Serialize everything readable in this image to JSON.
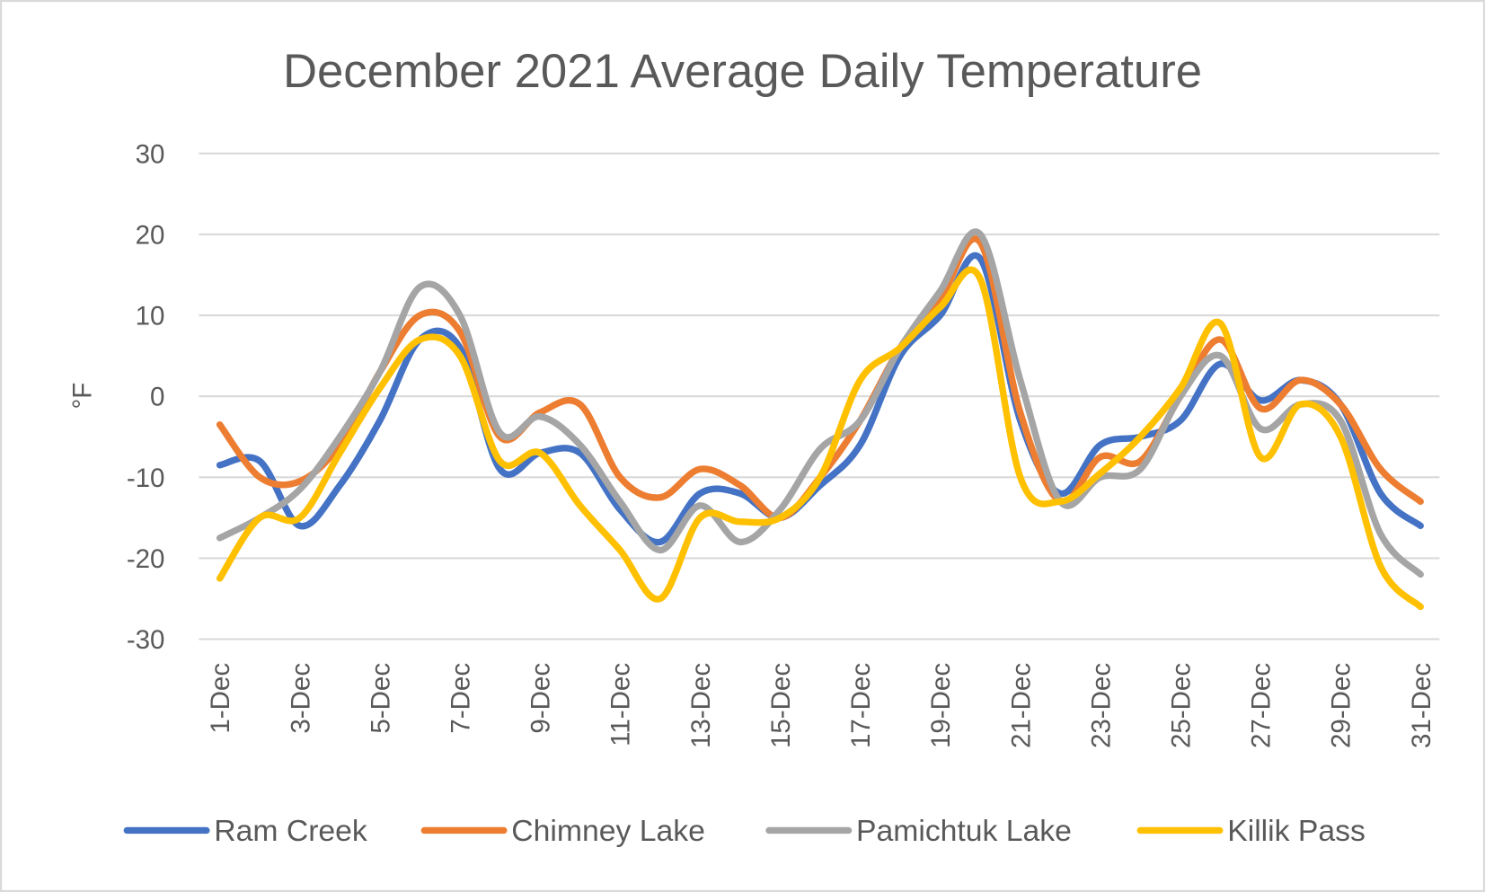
{
  "chart_data": {
    "type": "line",
    "title": "December 2021 Average Daily Temperature",
    "xlabel": "",
    "ylabel": "°F",
    "ylim": [
      -30,
      30
    ],
    "yticks": [
      30,
      20,
      10,
      0,
      -10,
      -20,
      -30
    ],
    "grid": true,
    "smoothed": true,
    "legend": "bottom",
    "categories": [
      "1-Dec",
      "2-Dec",
      "3-Dec",
      "4-Dec",
      "5-Dec",
      "6-Dec",
      "7-Dec",
      "8-Dec",
      "9-Dec",
      "10-Dec",
      "11-Dec",
      "12-Dec",
      "13-Dec",
      "14-Dec",
      "15-Dec",
      "16-Dec",
      "17-Dec",
      "18-Dec",
      "19-Dec",
      "20-Dec",
      "21-Dec",
      "22-Dec",
      "23-Dec",
      "24-Dec",
      "25-Dec",
      "26-Dec",
      "27-Dec",
      "28-Dec",
      "29-Dec",
      "30-Dec",
      "31-Dec"
    ],
    "tick_labels": [
      "1-Dec",
      "3-Dec",
      "5-Dec",
      "7-Dec",
      "9-Dec",
      "11-Dec",
      "13-Dec",
      "15-Dec",
      "17-Dec",
      "19-Dec",
      "21-Dec",
      "23-Dec",
      "25-Dec",
      "27-Dec",
      "29-Dec",
      "31-Dec"
    ],
    "series": [
      {
        "name": "Ram Creek",
        "color": "#4472C4",
        "values": [
          -8.5,
          -8,
          -16,
          -11,
          -3,
          7,
          6,
          -9,
          -7,
          -7,
          -14,
          -18,
          -12,
          -12,
          -15,
          -11,
          -6,
          5,
          10,
          17,
          -3,
          -12,
          -6,
          -5,
          -3,
          4,
          -0.5,
          2,
          -1,
          -12,
          -16
        ]
      },
      {
        "name": "Chimney Lake",
        "color": "#ED7D31",
        "values": [
          -3.5,
          -10,
          -10.5,
          -6,
          3,
          10,
          8,
          -5,
          -2,
          -1,
          -10,
          -12.5,
          -9,
          -11,
          -15,
          -10,
          -3,
          6,
          12,
          19,
          -2,
          -13,
          -7.5,
          -8,
          0,
          7,
          -1.5,
          2,
          -1,
          -9,
          -13
        ]
      },
      {
        "name": "Pamichtuk Lake",
        "color": "#A5A5A5",
        "values": [
          -17.5,
          -15,
          -11.5,
          -5,
          3,
          13.5,
          10,
          -4.5,
          -2.5,
          -6,
          -13,
          -19,
          -13.5,
          -18,
          -14,
          -6.5,
          -3,
          6,
          13,
          20,
          2,
          -13,
          -10,
          -9,
          0,
          5,
          -4,
          -1,
          -3,
          -17,
          -22
        ]
      },
      {
        "name": "Killik Pass",
        "color": "#FFC000",
        "values": [
          -22.5,
          -15,
          -15,
          -7,
          1,
          7,
          5,
          -8,
          -7,
          -13.5,
          -19,
          -25,
          -15,
          -15.5,
          -15,
          -10,
          2,
          6,
          11,
          14.5,
          -10,
          -13,
          -9.5,
          -5,
          1,
          9,
          -7.5,
          -1,
          -5,
          -21,
          -26
        ]
      }
    ]
  }
}
